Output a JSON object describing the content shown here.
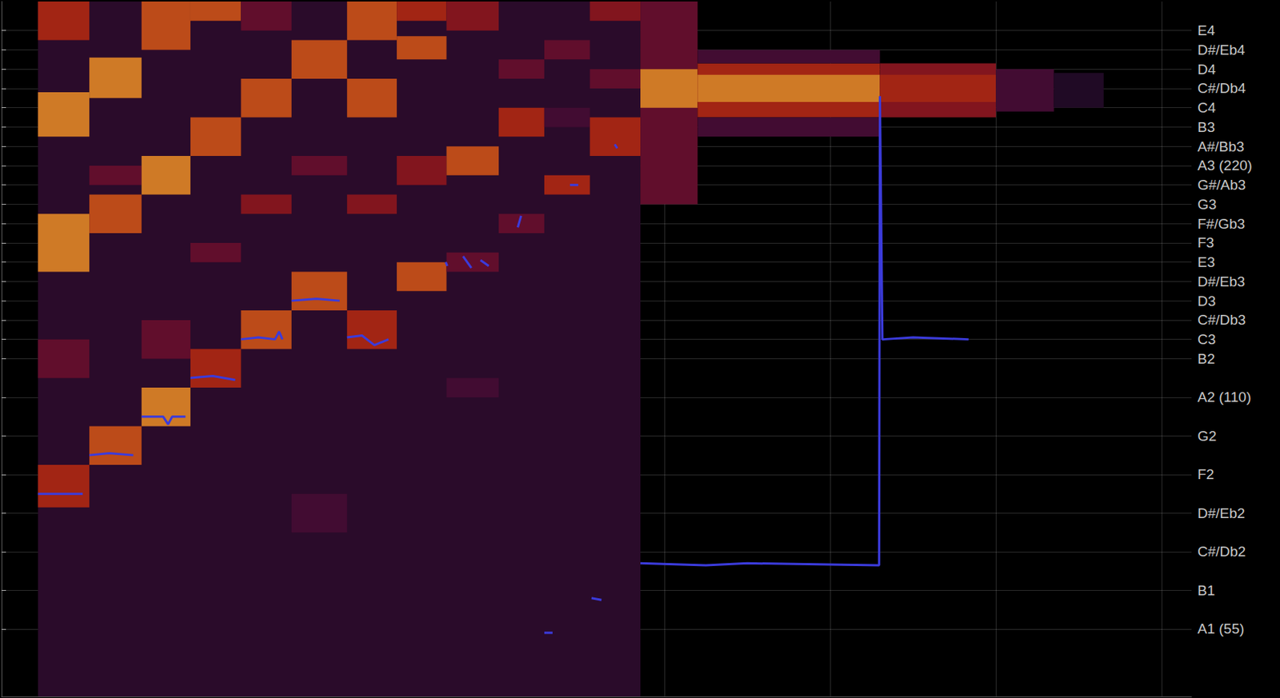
{
  "chart_data": {
    "type": "spectrogram",
    "xlim": [
      0,
      14.36
    ],
    "xticks": [
      2,
      4,
      6,
      8,
      10,
      12,
      14
    ],
    "ylim": [
      29.5,
      65.5
    ],
    "yticks": [
      {
        "value": 64,
        "label": "E4"
      },
      {
        "value": 63,
        "label": "D#/Eb4"
      },
      {
        "value": 62,
        "label": "D4"
      },
      {
        "value": 61,
        "label": "C#/Db4"
      },
      {
        "value": 60,
        "label": "C4"
      },
      {
        "value": 59,
        "label": "B3"
      },
      {
        "value": 58,
        "label": "A#/Bb3"
      },
      {
        "value": 57,
        "label": "A3 (220)"
      },
      {
        "value": 56,
        "label": "G#/Ab3"
      },
      {
        "value": 55,
        "label": "G3"
      },
      {
        "value": 54,
        "label": "F#/Gb3"
      },
      {
        "value": 53,
        "label": "F3"
      },
      {
        "value": 52,
        "label": "E3"
      },
      {
        "value": 51,
        "label": "D#/Eb3"
      },
      {
        "value": 50,
        "label": "D3"
      },
      {
        "value": 49,
        "label": "C#/Db3"
      },
      {
        "value": 48,
        "label": "C3"
      },
      {
        "value": 47,
        "label": "B2"
      },
      {
        "value": 45,
        "label": "A2 (110)"
      },
      {
        "value": 43,
        "label": "G2"
      },
      {
        "value": 41,
        "label": "F2"
      },
      {
        "value": 39,
        "label": "D#/Eb2"
      },
      {
        "value": 37,
        "label": "C#/Db2"
      },
      {
        "value": 35,
        "label": "B1"
      },
      {
        "value": 33,
        "label": "A1 (55)"
      }
    ],
    "tick_labels": "y",
    "grid": true,
    "zlim": [
      0,
      10
    ],
    "cells": [
      [
        0.44,
        7.71,
        29.5,
        65.5,
        2
      ],
      [
        0.44,
        1.06,
        39.3,
        41.5,
        6
      ],
      [
        0.44,
        1.06,
        51.5,
        54.5,
        8
      ],
      [
        0.44,
        1.06,
        58.5,
        60.8,
        8
      ],
      [
        0.44,
        1.06,
        63.5,
        65.5,
        6
      ],
      [
        0.44,
        1.06,
        46,
        48,
        4
      ],
      [
        1.06,
        1.69,
        41.5,
        43.5,
        7
      ],
      [
        1.06,
        1.69,
        53.5,
        55.5,
        7
      ],
      [
        1.06,
        1.69,
        60.5,
        62.6,
        8
      ],
      [
        1.06,
        1.69,
        56,
        57,
        4
      ],
      [
        1.69,
        2.28,
        43.5,
        45.5,
        8
      ],
      [
        1.69,
        2.28,
        55.5,
        57.5,
        8
      ],
      [
        1.69,
        2.28,
        63,
        65.5,
        7
      ],
      [
        1.69,
        2.28,
        47,
        49,
        4
      ],
      [
        2.28,
        2.89,
        45.5,
        47.5,
        6
      ],
      [
        2.28,
        2.89,
        57.5,
        59.5,
        7
      ],
      [
        2.28,
        2.89,
        64.5,
        65.5,
        7
      ],
      [
        2.28,
        2.89,
        52,
        53,
        4
      ],
      [
        2.89,
        3.5,
        47.5,
        49.5,
        7
      ],
      [
        2.89,
        3.5,
        59.5,
        61.5,
        7
      ],
      [
        2.89,
        3.5,
        54.5,
        55.5,
        5
      ],
      [
        2.89,
        3.5,
        64,
        65.5,
        4
      ],
      [
        3.5,
        4.17,
        49.5,
        51.5,
        7
      ],
      [
        3.5,
        4.17,
        61.5,
        63.5,
        7
      ],
      [
        3.5,
        4.17,
        56.5,
        57.5,
        4
      ],
      [
        3.5,
        4.17,
        38,
        40,
        3
      ],
      [
        4.17,
        4.77,
        47.5,
        49.5,
        6
      ],
      [
        4.17,
        4.77,
        59.5,
        61.5,
        7
      ],
      [
        4.17,
        4.77,
        54.5,
        55.5,
        5
      ],
      [
        4.17,
        4.77,
        63.5,
        65.5,
        7
      ],
      [
        4.77,
        5.37,
        50.5,
        52,
        7
      ],
      [
        4.77,
        5.37,
        62.5,
        63.7,
        7
      ],
      [
        4.77,
        5.37,
        56,
        57.5,
        5
      ],
      [
        4.77,
        5.37,
        64.5,
        65.5,
        6
      ],
      [
        5.37,
        6.0,
        51.5,
        52.5,
        4
      ],
      [
        5.37,
        6.0,
        56.5,
        58,
        7
      ],
      [
        5.37,
        6.0,
        64,
        65.5,
        5
      ],
      [
        5.37,
        6.0,
        45,
        46,
        3
      ],
      [
        6.0,
        6.55,
        53.5,
        54.5,
        4
      ],
      [
        6.0,
        6.55,
        58.5,
        60,
        6
      ],
      [
        6.0,
        6.55,
        61.5,
        62.5,
        4
      ],
      [
        6.55,
        7.1,
        55.5,
        56.5,
        6
      ],
      [
        6.55,
        7.1,
        62.5,
        63.5,
        4
      ],
      [
        6.55,
        7.1,
        59,
        60,
        3
      ],
      [
        7.1,
        7.71,
        57.5,
        59.5,
        6
      ],
      [
        7.1,
        7.71,
        64.5,
        65.5,
        5
      ],
      [
        7.1,
        7.71,
        61,
        62,
        4
      ],
      [
        7.71,
        8.4,
        55,
        65.5,
        4
      ],
      [
        7.71,
        8.4,
        60,
        62,
        8
      ],
      [
        8.4,
        10.6,
        59.5,
        62.3,
        6
      ],
      [
        8.4,
        10.6,
        60.3,
        61.7,
        8
      ],
      [
        8.4,
        10.6,
        62.3,
        63,
        3
      ],
      [
        8.4,
        10.6,
        58.5,
        59.5,
        3
      ],
      [
        10.6,
        12.0,
        59.5,
        62.3,
        5
      ],
      [
        10.6,
        12.0,
        60.3,
        61.7,
        6
      ],
      [
        12.0,
        12.7,
        59.8,
        62,
        3
      ],
      [
        12.7,
        13.3,
        60,
        61.8,
        1.5
      ]
    ],
    "series": [
      {
        "type": "line",
        "color": "#3b3bdb",
        "x": [
          0.44,
          0.7,
          0.98,
          1.02,
          1.06,
          1.3,
          1.59,
          1.64,
          1.69,
          1.95,
          2.01,
          2.06,
          2.22,
          2.25,
          2.28,
          2.55,
          2.82,
          2.85,
          2.89,
          3.1,
          3.3,
          3.35,
          3.39,
          3.45,
          3.5,
          3.8,
          4.08,
          4.12,
          4.17,
          4.35,
          4.5,
          4.67,
          5.0,
          5.36,
          5.38,
          5.5,
          5.57,
          5.67,
          5.72,
          5.78,
          5.88,
          6.0,
          6.23,
          6.27,
          6.4,
          6.55,
          6.65,
          6.75,
          6.86,
          6.96,
          7.05,
          7.12,
          7.24,
          7.3,
          7.4,
          7.43,
          7.6,
          7.71,
          8.5,
          9.0,
          10.59,
          10.6,
          10.63,
          10.64,
          11.0,
          11.67
        ],
        "values": [
          40.0,
          40.0,
          40.0,
          null,
          42.0,
          42.1,
          42.0,
          null,
          44.0,
          44.0,
          43.6,
          44.0,
          44.0,
          null,
          46.0,
          46.1,
          45.9,
          null,
          48.0,
          48.1,
          48.0,
          48.4,
          48.0,
          null,
          50.0,
          50.1,
          50.0,
          null,
          48.1,
          48.2,
          47.7,
          48.0,
          null,
          52.0,
          51.8,
          null,
          52.3,
          51.7,
          null,
          52.1,
          51.8,
          null,
          53.8,
          54.4,
          null,
          32.8,
          32.8,
          null,
          56.0,
          56.0,
          null,
          34.6,
          34.5,
          null,
          58.1,
          57.9,
          null,
          36.4,
          36.3,
          36.4,
          36.3,
          60.6,
          48.0,
          48.0,
          48.1,
          48.0
        ]
      }
    ]
  }
}
